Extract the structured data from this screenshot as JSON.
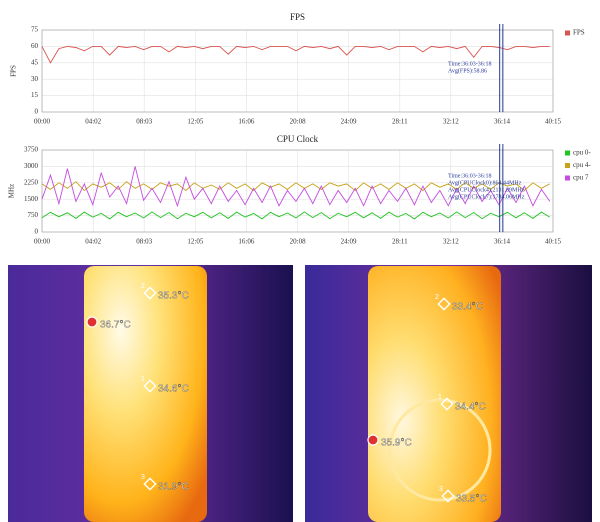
{
  "chart_data": [
    {
      "type": "line",
      "title": "FPS",
      "y_label": "FPS",
      "x": [
        0,
        40,
        80,
        120,
        160,
        200,
        240,
        280,
        320,
        360,
        400,
        440,
        480,
        520,
        560,
        600,
        640,
        680,
        720,
        760,
        800,
        840,
        880,
        920,
        960,
        1000,
        1040,
        1080,
        1120,
        1160,
        1200,
        1240,
        1280,
        1320,
        1360,
        1400,
        1440,
        1480,
        1520,
        1560,
        1600,
        1640,
        1680,
        1720,
        1760,
        1800,
        1840,
        1880,
        1920,
        1960,
        2000,
        2040,
        2080,
        2120,
        2160,
        2200,
        2240,
        2280,
        2320,
        2360,
        2400
      ],
      "series": [
        {
          "name": "FPS",
          "color": "#d9534f",
          "values": [
            60,
            45,
            58,
            60,
            59,
            56,
            60,
            60,
            52,
            60,
            59,
            60,
            57,
            60,
            60,
            55,
            60,
            59,
            60,
            58,
            60,
            60,
            53,
            60,
            59,
            60,
            57,
            60,
            60,
            60,
            56,
            60,
            59,
            60,
            58,
            60,
            52,
            60,
            60,
            59,
            60,
            57,
            60,
            60,
            60,
            55,
            60,
            59,
            60,
            58,
            60,
            50,
            60,
            60,
            59,
            57,
            60,
            60,
            59,
            60,
            60
          ]
        }
      ],
      "xlim": [
        0,
        2415
      ],
      "xticks": [
        {
          "value": 0,
          "label": "00:00"
        },
        {
          "value": 242,
          "label": "04:02"
        },
        {
          "value": 483,
          "label": "08:03"
        },
        {
          "value": 725,
          "label": "12:05"
        },
        {
          "value": 966,
          "label": "16:06"
        },
        {
          "value": 1208,
          "label": "20:08"
        },
        {
          "value": 1449,
          "label": "24:09"
        },
        {
          "value": 1691,
          "label": "28:11"
        },
        {
          "value": 1932,
          "label": "32:12"
        },
        {
          "value": 2174,
          "label": "36:14"
        },
        {
          "value": 2415,
          "label": "40:15"
        }
      ],
      "ylim": [
        0,
        75
      ],
      "yticks": [
        0,
        15,
        30,
        45,
        60,
        75
      ],
      "grid": true,
      "highlight": [
        2163,
        2178
      ],
      "annotations": [
        "Time:36:03-36:18",
        "Avg(FPS):58.86"
      ]
    },
    {
      "type": "line",
      "title": "CPU Clock",
      "y_label": "MHz",
      "x": [
        0,
        40,
        80,
        120,
        160,
        200,
        240,
        280,
        320,
        360,
        400,
        440,
        480,
        520,
        560,
        600,
        640,
        680,
        720,
        760,
        800,
        840,
        880,
        920,
        960,
        1000,
        1040,
        1080,
        1120,
        1160,
        1200,
        1240,
        1280,
        1320,
        1360,
        1400,
        1440,
        1480,
        1520,
        1560,
        1600,
        1640,
        1680,
        1720,
        1760,
        1800,
        1840,
        1880,
        1920,
        1960,
        2000,
        2040,
        2080,
        2120,
        2160,
        2200,
        2240,
        2280,
        2320,
        2360,
        2400
      ],
      "series": [
        {
          "name": "cpu 0-",
          "color": "#22c422",
          "values": [
            650,
            900,
            700,
            880,
            620,
            910,
            680,
            850,
            600,
            900,
            700,
            870,
            640,
            920,
            660,
            890,
            610,
            860,
            700,
            900,
            650,
            880,
            620,
            910,
            680,
            850,
            600,
            900,
            700,
            870,
            640,
            920,
            660,
            890,
            610,
            860,
            700,
            900,
            650,
            880,
            620,
            910,
            680,
            850,
            600,
            900,
            700,
            870,
            640,
            920,
            660,
            890,
            610,
            860,
            700,
            900,
            650,
            880,
            620,
            910,
            680
          ]
        },
        {
          "name": "cpu 4-",
          "color": "#c8a21a",
          "values": [
            2200,
            1950,
            2250,
            2000,
            2300,
            1900,
            2200,
            2050,
            2250,
            1950,
            2300,
            2000,
            2200,
            1950,
            2250,
            2100,
            2200,
            1900,
            2250,
            2000,
            2150,
            1950,
            2250,
            2000,
            2200,
            1900,
            2250,
            2050,
            2200,
            1950,
            2250,
            2000,
            2200,
            1950,
            2250,
            2100,
            2200,
            1900,
            2250,
            2000,
            2200,
            1950,
            2250,
            2000,
            2200,
            1900,
            2250,
            2050,
            2200,
            1950,
            2250,
            2000,
            2200,
            1950,
            2250,
            2100,
            2200,
            1900,
            2250,
            2000,
            2200
          ]
        },
        {
          "name": "cpu 7",
          "color": "#c44ce0",
          "values": [
            1500,
            2600,
            1300,
            2900,
            1400,
            2200,
            1250,
            2700,
            1600,
            2100,
            1300,
            3000,
            1450,
            2000,
            1350,
            2300,
            1200,
            2500,
            1500,
            2000,
            1300,
            2100,
            1400,
            1900,
            1250,
            2000,
            1350,
            2100,
            1200,
            1900,
            1400,
            2000,
            1300,
            2100,
            1250,
            1900,
            1350,
            2000,
            1200,
            2100,
            1300,
            1900,
            1400,
            2000,
            1250,
            2100,
            1350,
            1900,
            1200,
            2000,
            1300,
            2100,
            1400,
            1900,
            1250,
            2000,
            1350,
            2100,
            1200,
            1950,
            1400
          ]
        }
      ],
      "xlim": [
        0,
        2415
      ],
      "xticks": [
        {
          "value": 0,
          "label": "00:00"
        },
        {
          "value": 242,
          "label": "04:02"
        },
        {
          "value": 483,
          "label": "08:03"
        },
        {
          "value": 725,
          "label": "12:05"
        },
        {
          "value": 966,
          "label": "16:06"
        },
        {
          "value": 1208,
          "label": "20:08"
        },
        {
          "value": 1449,
          "label": "24:09"
        },
        {
          "value": 1691,
          "label": "28:11"
        },
        {
          "value": 1932,
          "label": "32:12"
        },
        {
          "value": 2174,
          "label": "36:14"
        },
        {
          "value": 2415,
          "label": "40:15"
        }
      ],
      "ylim": [
        0,
        3750
      ],
      "yticks": [
        0,
        750,
        1500,
        2250,
        3000,
        3750
      ],
      "grid": true,
      "highlight": [
        2163,
        2178
      ],
      "annotations": [
        "Time:36:03-36:18",
        "Avg(CPUClock0):864.44MHz",
        "Avg(CPUClock4):2131.89MHz",
        "Avg(CPUClock7):1784.06MHz"
      ]
    }
  ],
  "thermal_images": [
    {
      "spots": [
        {
          "index": "2",
          "label": "35.3°C"
        },
        {
          "index": "",
          "label": "36.7°C"
        },
        {
          "index": "1",
          "label": "34.6°C"
        },
        {
          "index": "3",
          "label": "31.9°C"
        }
      ]
    },
    {
      "spots": [
        {
          "index": "2",
          "label": "33.4°C"
        },
        {
          "index": "1",
          "label": "34.4°C"
        },
        {
          "index": "",
          "label": "35.9°C"
        },
        {
          "index": "3",
          "label": "33.5°C"
        }
      ]
    }
  ]
}
